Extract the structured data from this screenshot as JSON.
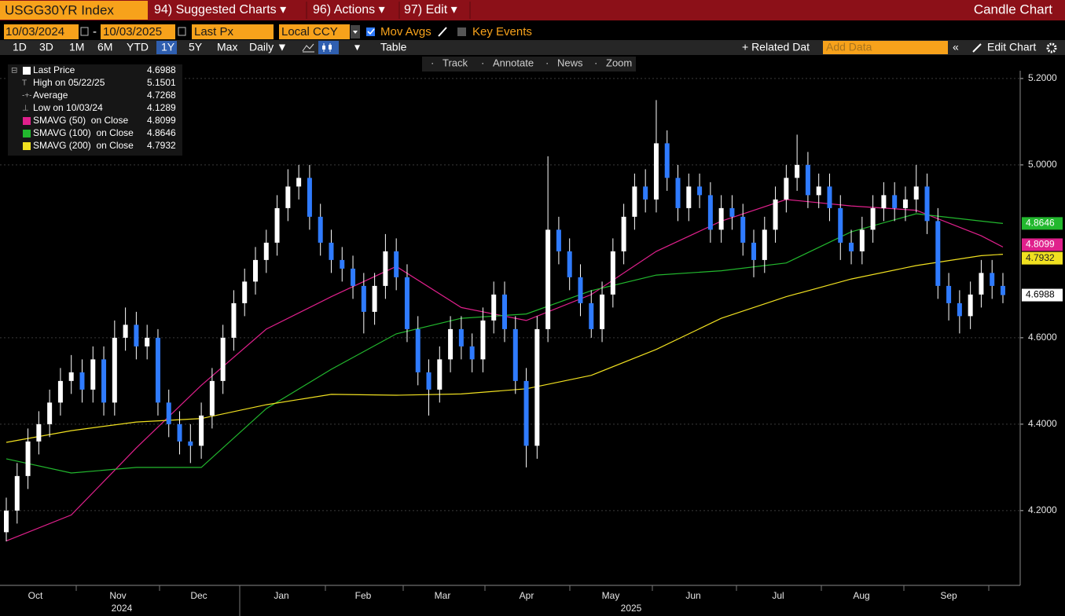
{
  "header": {
    "ticker": "USGG30YR Index",
    "menus": [
      "94) Suggested Charts ▾",
      "96) Actions ▾",
      "97) Edit ▾"
    ],
    "chart_kind": "Candle Chart"
  },
  "controls": {
    "start_date": "10/03/2024",
    "end_date": "10/03/2025",
    "field": "Last Px",
    "currency": "Local CCY",
    "mov_avgs": "Mov Avgs",
    "key_events": "Key Events",
    "ranges": [
      "1D",
      "3D",
      "1M",
      "6M",
      "YTD",
      "1Y",
      "5Y",
      "Max"
    ],
    "active_range": "1Y",
    "frequency": "Daily ▼",
    "table": "Table",
    "related": "+ Related Dat",
    "add_data": "Add Data",
    "edit_chart": "Edit Chart",
    "tools": [
      "Track",
      "Annotate",
      "News",
      "Zoom"
    ]
  },
  "chart_data": {
    "type": "candlestick",
    "summary": {
      "last_label": "Last Price",
      "high_label": "High on 05/22/25",
      "average_label": "Average",
      "average": 4.7268,
      "low_label": "Low on 10/03/24"
    },
    "candles": [
      [
        4.15,
        4.23,
        4.1289,
        4.2
      ],
      [
        4.2,
        4.31,
        4.17,
        4.28
      ],
      [
        4.28,
        4.39,
        4.25,
        4.36
      ],
      [
        4.36,
        4.43,
        4.33,
        4.4
      ],
      [
        4.4,
        4.48,
        4.37,
        4.45
      ],
      [
        4.45,
        4.53,
        4.42,
        4.5
      ],
      [
        4.5,
        4.56,
        4.47,
        4.52
      ],
      [
        4.52,
        4.55,
        4.45,
        4.48
      ],
      [
        4.48,
        4.58,
        4.45,
        4.55
      ],
      [
        4.55,
        4.58,
        4.42,
        4.45
      ],
      [
        4.45,
        4.64,
        4.42,
        4.6
      ],
      [
        4.6,
        4.67,
        4.57,
        4.63
      ],
      [
        4.63,
        4.66,
        4.55,
        4.58
      ],
      [
        4.58,
        4.63,
        4.55,
        4.6
      ],
      [
        4.6,
        4.62,
        4.42,
        4.45
      ],
      [
        4.45,
        4.48,
        4.37,
        4.4
      ],
      [
        4.4,
        4.43,
        4.33,
        4.36
      ],
      [
        4.36,
        4.4,
        4.31,
        4.35
      ],
      [
        4.35,
        4.45,
        4.32,
        4.42
      ],
      [
        4.42,
        4.53,
        4.39,
        4.5
      ],
      [
        4.5,
        4.63,
        4.47,
        4.6
      ],
      [
        4.6,
        4.71,
        4.57,
        4.68
      ],
      [
        4.68,
        4.76,
        4.65,
        4.73
      ],
      [
        4.73,
        4.81,
        4.7,
        4.78
      ],
      [
        4.78,
        4.85,
        4.75,
        4.82
      ],
      [
        4.82,
        4.93,
        4.79,
        4.9
      ],
      [
        4.9,
        4.99,
        4.87,
        4.95
      ],
      [
        4.95,
        5.0,
        4.92,
        4.97
      ],
      [
        4.97,
        5.0,
        4.85,
        4.88
      ],
      [
        4.88,
        4.91,
        4.79,
        4.82
      ],
      [
        4.82,
        4.85,
        4.75,
        4.78
      ],
      [
        4.78,
        4.81,
        4.73,
        4.76
      ],
      [
        4.76,
        4.79,
        4.69,
        4.72
      ],
      [
        4.72,
        4.75,
        4.61,
        4.66
      ],
      [
        4.66,
        4.75,
        4.63,
        4.72
      ],
      [
        4.72,
        4.84,
        4.69,
        4.8
      ],
      [
        4.8,
        4.83,
        4.71,
        4.74
      ],
      [
        4.74,
        4.77,
        4.59,
        4.62
      ],
      [
        4.62,
        4.65,
        4.49,
        4.52
      ],
      [
        4.52,
        4.55,
        4.42,
        4.48
      ],
      [
        4.48,
        4.58,
        4.45,
        4.55
      ],
      [
        4.55,
        4.65,
        4.52,
        4.62
      ],
      [
        4.62,
        4.65,
        4.55,
        4.58
      ],
      [
        4.58,
        4.61,
        4.52,
        4.55
      ],
      [
        4.55,
        4.67,
        4.52,
        4.64
      ],
      [
        4.64,
        4.73,
        4.61,
        4.7
      ],
      [
        4.7,
        4.73,
        4.59,
        4.62
      ],
      [
        4.62,
        4.65,
        4.47,
        4.5
      ],
      [
        4.5,
        4.53,
        4.3,
        4.35
      ],
      [
        4.35,
        4.65,
        4.32,
        4.62
      ],
      [
        4.62,
        5.02,
        4.59,
        4.85
      ],
      [
        4.85,
        4.88,
        4.77,
        4.8
      ],
      [
        4.8,
        4.83,
        4.71,
        4.74
      ],
      [
        4.74,
        4.77,
        4.65,
        4.68
      ],
      [
        4.68,
        4.71,
        4.6,
        4.62
      ],
      [
        4.62,
        4.73,
        4.59,
        4.7
      ],
      [
        4.7,
        4.83,
        4.67,
        4.8
      ],
      [
        4.8,
        4.91,
        4.77,
        4.88
      ],
      [
        4.88,
        4.98,
        4.85,
        4.95
      ],
      [
        4.95,
        4.99,
        4.89,
        4.92
      ],
      [
        4.92,
        5.1501,
        4.89,
        5.05
      ],
      [
        5.05,
        5.08,
        4.94,
        4.97
      ],
      [
        4.97,
        5.0,
        4.87,
        4.9
      ],
      [
        4.9,
        4.98,
        4.87,
        4.95
      ],
      [
        4.95,
        4.98,
        4.9,
        4.93
      ],
      [
        4.93,
        4.96,
        4.82,
        4.85
      ],
      [
        4.85,
        4.93,
        4.82,
        4.9
      ],
      [
        4.9,
        4.93,
        4.85,
        4.88
      ],
      [
        4.88,
        4.91,
        4.79,
        4.82
      ],
      [
        4.82,
        4.85,
        4.74,
        4.78
      ],
      [
        4.78,
        4.88,
        4.75,
        4.85
      ],
      [
        4.85,
        4.95,
        4.82,
        4.92
      ],
      [
        4.92,
        5.0,
        4.89,
        4.97
      ],
      [
        4.97,
        5.07,
        4.94,
        5.0
      ],
      [
        5.0,
        5.03,
        4.9,
        4.93
      ],
      [
        4.93,
        4.98,
        4.9,
        4.95
      ],
      [
        4.95,
        4.98,
        4.87,
        4.9
      ],
      [
        4.9,
        4.93,
        4.78,
        4.82
      ],
      [
        4.82,
        4.85,
        4.77,
        4.8
      ],
      [
        4.8,
        4.88,
        4.77,
        4.85
      ],
      [
        4.85,
        4.93,
        4.82,
        4.9
      ],
      [
        4.9,
        4.96,
        4.87,
        4.93
      ],
      [
        4.93,
        4.96,
        4.87,
        4.9
      ],
      [
        4.9,
        4.95,
        4.87,
        4.92
      ],
      [
        4.92,
        5.0,
        4.89,
        4.95
      ],
      [
        4.95,
        4.98,
        4.84,
        4.87
      ],
      [
        4.87,
        4.9,
        4.69,
        4.72
      ],
      [
        4.72,
        4.75,
        4.64,
        4.68
      ],
      [
        4.68,
        4.71,
        4.61,
        4.65
      ],
      [
        4.65,
        4.73,
        4.62,
        4.7
      ],
      [
        4.7,
        4.78,
        4.67,
        4.75
      ],
      [
        4.75,
        4.78,
        4.69,
        4.72
      ],
      [
        4.72,
        4.75,
        4.68,
        4.6988
      ]
    ],
    "up_color": "#ffffff",
    "down_color": "#2f7bff",
    "series": [
      {
        "name": "SMAVG (50)  on Close",
        "color": "#e0208c",
        "x": [
          0,
          6,
          12,
          18,
          24,
          30,
          36,
          42,
          48,
          54,
          60,
          66,
          72,
          78,
          84,
          90,
          92
        ],
        "values": [
          4.13,
          4.19,
          4.345,
          4.49,
          4.62,
          4.695,
          4.765,
          4.67,
          4.64,
          4.7,
          4.8,
          4.87,
          4.92,
          4.905,
          4.895,
          4.836,
          4.8099
        ]
      },
      {
        "name": "SMAVG (100)  on Close",
        "color": "#22b82e",
        "x": [
          0,
          6,
          12,
          18,
          24,
          30,
          36,
          42,
          48,
          54,
          60,
          66,
          72,
          78,
          84,
          90,
          92
        ],
        "values": [
          4.32,
          4.287,
          4.3,
          4.3,
          4.436,
          4.527,
          4.609,
          4.645,
          4.655,
          4.709,
          4.745,
          4.755,
          4.773,
          4.845,
          4.887,
          4.87,
          4.8646
        ]
      },
      {
        "name": "SMAVG (200)  on Close",
        "color": "#f0e020",
        "x": [
          0,
          6,
          12,
          18,
          24,
          30,
          36,
          42,
          48,
          54,
          60,
          66,
          72,
          78,
          84,
          90,
          92
        ],
        "values": [
          4.358,
          4.385,
          4.405,
          4.413,
          4.445,
          4.469,
          4.467,
          4.47,
          4.482,
          4.513,
          4.573,
          4.645,
          4.695,
          4.736,
          4.767,
          4.79,
          4.7932
        ]
      }
    ],
    "xlim": [
      0,
      92
    ],
    "ylim": [
      4.027,
      5.218
    ],
    "yticks": [
      {
        "value": 4.2,
        "label": "4.2000"
      },
      {
        "value": 4.4,
        "label": "4.4000"
      },
      {
        "value": 4.6,
        "label": "4.6000"
      },
      {
        "value": 5.0,
        "label": "5.0000"
      },
      {
        "value": 5.2,
        "label": "5.2000"
      }
    ],
    "months": [
      "Oct",
      "Nov",
      "Dec",
      "Jan",
      "Feb",
      "Mar",
      "Apr",
      "May",
      "Jun",
      "Jul",
      "Aug",
      "Sep"
    ],
    "years": [
      "2024",
      "2025"
    ],
    "grid": true
  }
}
